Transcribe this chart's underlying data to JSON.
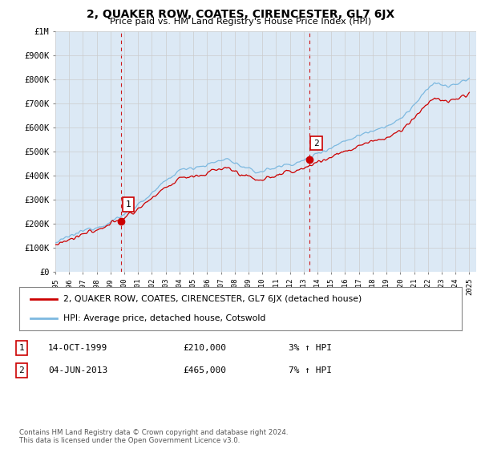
{
  "title": "2, QUAKER ROW, COATES, CIRENCESTER, GL7 6JX",
  "subtitle": "Price paid vs. HM Land Registry's House Price Index (HPI)",
  "y_min": 0,
  "y_max": 1000000,
  "y_ticks": [
    0,
    100000,
    200000,
    300000,
    400000,
    500000,
    600000,
    700000,
    800000,
    900000,
    1000000
  ],
  "y_tick_labels": [
    "£0",
    "£100K",
    "£200K",
    "£300K",
    "£400K",
    "£500K",
    "£600K",
    "£700K",
    "£800K",
    "£900K",
    "£1M"
  ],
  "hpi_color": "#7db9e0",
  "price_color": "#cc0000",
  "dashed_line_color": "#cc0000",
  "grid_color": "#cccccc",
  "plot_bg_color": "#dce9f5",
  "background_color": "#ffffff",
  "sale1_year": 1999.79,
  "sale1_price": 210000,
  "sale1_label": "1",
  "sale1_date": "14-OCT-1999",
  "sale1_hpi_pct": "3%",
  "sale2_year": 2013.42,
  "sale2_price": 465000,
  "sale2_label": "2",
  "sale2_date": "04-JUN-2013",
  "sale2_hpi_pct": "7%",
  "legend_price_label": "2, QUAKER ROW, COATES, CIRENCESTER, GL7 6JX (detached house)",
  "legend_hpi_label": "HPI: Average price, detached house, Cotswold",
  "footer": "Contains HM Land Registry data © Crown copyright and database right 2024.\nThis data is licensed under the Open Government Licence v3.0."
}
